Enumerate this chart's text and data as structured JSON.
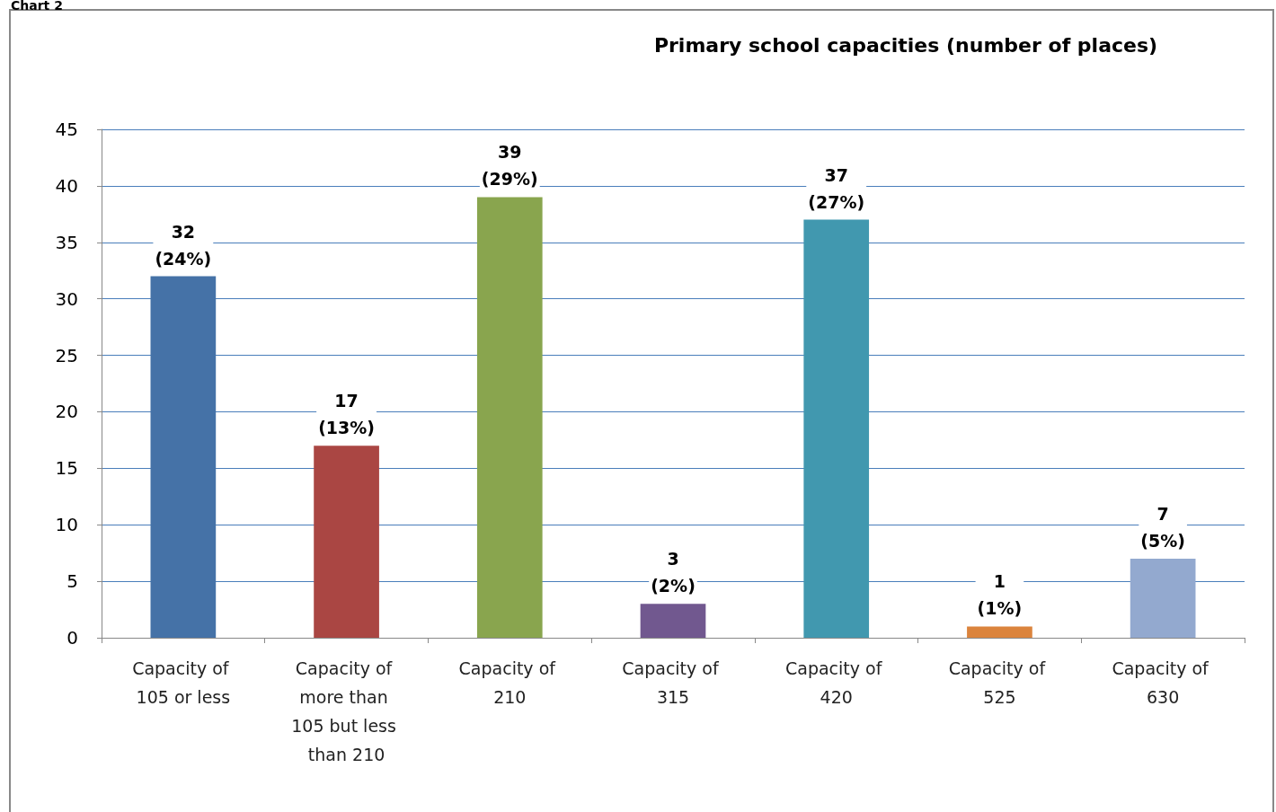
{
  "chart_data": {
    "type": "bar",
    "title": "Primary school capacities (number of places)",
    "annotations": [
      "Chart 2"
    ],
    "categories": [
      "Capacity of 105 or less",
      "Capacity of more than 105 but less than 210",
      "Capacity of 210",
      "Capacity of 315",
      "Capacity of 420",
      "Capacity of 525",
      "Capacity of 630"
    ],
    "values": [
      32,
      17,
      39,
      3,
      37,
      1,
      7
    ],
    "colors": [
      "#4572a7",
      "#aa4643",
      "#89a54e",
      "#71588f",
      "#4198af",
      "#db843d",
      "#93a9cf"
    ],
    "value_labels": [
      "32\n(24%)",
      "17\n(13%)",
      "39\n(29%)",
      "3\n(2%)",
      "37\n(27%)",
      "1\n(1%)",
      "7\n(5%)"
    ],
    "ylim": [
      0,
      45
    ],
    "yticks": [
      0,
      5,
      10,
      15,
      20,
      25,
      30,
      35,
      40,
      45
    ],
    "grid": "y"
  }
}
